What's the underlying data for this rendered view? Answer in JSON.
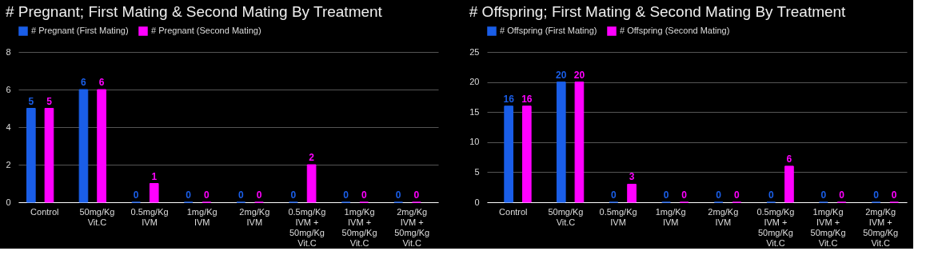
{
  "chart_data": [
    {
      "type": "bar",
      "title": "# Pregnant; First Mating & Second Mating By Treatment",
      "categories": [
        "Control",
        "50mg/Kg Vit.C",
        "0.5mg/Kg IVM",
        "1mg/Kg IVM",
        "2mg/Kg IVM",
        "0.5mg/Kg IVM + 50mg/Kg Vit.C",
        "1mg/Kg IVM + 50mg/Kg Vit.C",
        "2mg/Kg IVM + 50mg/Kg Vit.C"
      ],
      "series": [
        {
          "name": "# Pregnant (First Mating)",
          "color": "#1a5ee8",
          "values": [
            5,
            6,
            0,
            0,
            0,
            0,
            0,
            0
          ]
        },
        {
          "name": "# Pregnant (Second Mating)",
          "color": "#ff00ff",
          "values": [
            5,
            6,
            1,
            0,
            0,
            2,
            0,
            0
          ]
        }
      ],
      "ylim": [
        0,
        8
      ],
      "yticks": [
        0,
        2,
        4,
        6,
        8
      ],
      "grid": "y",
      "legend": "top",
      "data_labels": true
    },
    {
      "type": "bar",
      "title": "# Offspring; First Mating & Second Mating By Treatment",
      "categories": [
        "Control",
        "50mg/Kg Vit.C",
        "0.5mg/Kg IVM",
        "1mg/Kg IVM",
        "2mg/Kg IVM",
        "0.5mg/Kg IVM + 50mg/Kg Vit.C",
        "1mg/Kg IVM + 50mg/Kg Vit.C",
        "2mg/Kg IVM + 50mg/Kg Vit.C"
      ],
      "series": [
        {
          "name": "# Offspring (First Mating)",
          "color": "#1a5ee8",
          "values": [
            16,
            20,
            0,
            0,
            0,
            0,
            0,
            0
          ]
        },
        {
          "name": "# Offspring (Second Mating)",
          "color": "#ff00ff",
          "values": [
            16,
            20,
            3,
            0,
            0,
            6,
            0,
            0
          ]
        }
      ],
      "ylim": [
        0,
        25
      ],
      "yticks": [
        0,
        5,
        10,
        15,
        20,
        25
      ],
      "grid": "y",
      "legend": "top",
      "data_labels": true
    }
  ]
}
